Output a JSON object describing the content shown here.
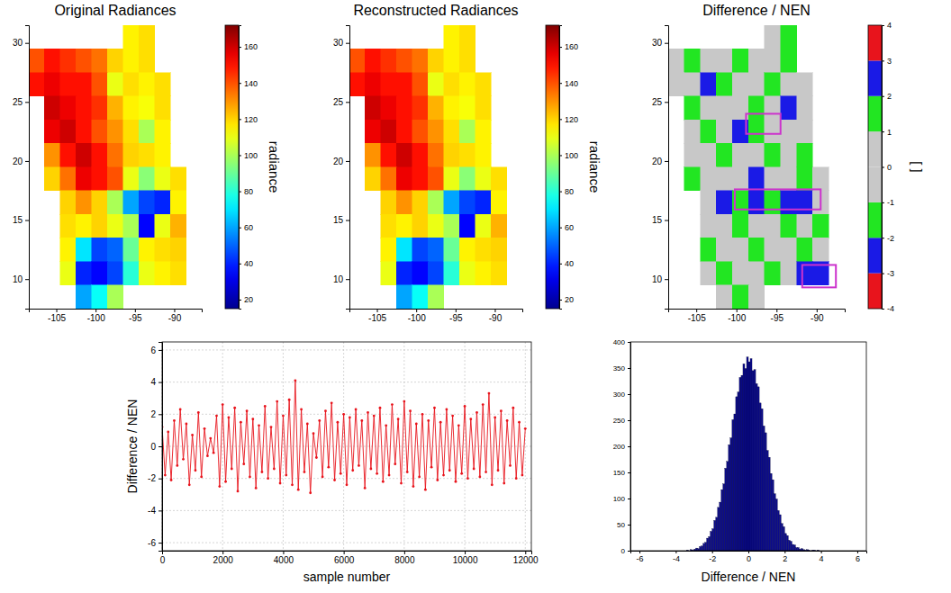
{
  "chart_data": [
    {
      "type": "heatmap",
      "title": "Original Radiances",
      "x": [
        -107.5,
        -105.5,
        -103.5,
        -101.5,
        -99.5,
        -97.5,
        -95.5,
        -93.5,
        -91.5,
        -89.5,
        -87.5
      ],
      "y": [
        30.5,
        28.5,
        26.5,
        24.5,
        22.5,
        20.5,
        18.5,
        16.5,
        14.5,
        12.5,
        10.5,
        8.5
      ],
      "values": [
        [
          null,
          null,
          null,
          null,
          null,
          null,
          115,
          118,
          null,
          null,
          null
        ],
        [
          140,
          150,
          145,
          140,
          135,
          120,
          115,
          118,
          null,
          null,
          null
        ],
        [
          150,
          155,
          150,
          150,
          140,
          110,
          118,
          115,
          118,
          null,
          null
        ],
        [
          null,
          160,
          155,
          150,
          145,
          125,
          115,
          112,
          118,
          null,
          null
        ],
        [
          null,
          155,
          160,
          150,
          140,
          130,
          118,
          100,
          115,
          null,
          null
        ],
        [
          null,
          130,
          150,
          160,
          150,
          135,
          120,
          118,
          115,
          null,
          null
        ],
        [
          null,
          120,
          135,
          155,
          150,
          140,
          110,
          95,
          110,
          118,
          null
        ],
        [
          null,
          null,
          120,
          130,
          120,
          100,
          60,
          45,
          40,
          115,
          null
        ],
        [
          null,
          null,
          118,
          115,
          120,
          110,
          100,
          35,
          110,
          125,
          null
        ],
        [
          null,
          null,
          115,
          70,
          45,
          50,
          90,
          115,
          118,
          120,
          null
        ],
        [
          null,
          null,
          110,
          40,
          35,
          45,
          80,
          110,
          115,
          118,
          null
        ],
        [
          null,
          null,
          null,
          60,
          75,
          100,
          null,
          null,
          null,
          null,
          null
        ]
      ],
      "xlim": [
        -108.5,
        -86.5
      ],
      "xticks": [
        -105,
        -100,
        -95,
        -90
      ],
      "ylim": [
        7.5,
        31.5
      ],
      "yticks": [
        10,
        15,
        20,
        25,
        30
      ],
      "colorbar": {
        "label": "radiance",
        "range": [
          15,
          172
        ],
        "ticks": [
          20,
          40,
          60,
          80,
          100,
          120,
          140,
          160
        ]
      }
    },
    {
      "type": "heatmap",
      "title": "Reconstructed Radiances",
      "x": [
        -107.5,
        -105.5,
        -103.5,
        -101.5,
        -99.5,
        -97.5,
        -95.5,
        -93.5,
        -91.5,
        -89.5,
        -87.5
      ],
      "y": [
        30.5,
        28.5,
        26.5,
        24.5,
        22.5,
        20.5,
        18.5,
        16.5,
        14.5,
        12.5,
        10.5,
        8.5
      ],
      "values": [
        [
          null,
          null,
          null,
          null,
          null,
          null,
          115,
          118,
          null,
          null,
          null
        ],
        [
          140,
          150,
          145,
          140,
          135,
          120,
          115,
          118,
          null,
          null,
          null
        ],
        [
          150,
          155,
          150,
          150,
          140,
          110,
          118,
          115,
          118,
          null,
          null
        ],
        [
          null,
          160,
          155,
          150,
          145,
          125,
          115,
          112,
          118,
          null,
          null
        ],
        [
          null,
          155,
          160,
          150,
          140,
          130,
          118,
          100,
          115,
          null,
          null
        ],
        [
          null,
          130,
          150,
          160,
          150,
          135,
          120,
          118,
          115,
          null,
          null
        ],
        [
          null,
          120,
          135,
          155,
          150,
          140,
          110,
          95,
          110,
          118,
          null
        ],
        [
          null,
          null,
          120,
          130,
          120,
          100,
          60,
          45,
          40,
          115,
          null
        ],
        [
          null,
          null,
          118,
          115,
          120,
          110,
          100,
          35,
          110,
          125,
          null
        ],
        [
          null,
          null,
          115,
          70,
          45,
          50,
          90,
          115,
          118,
          120,
          null
        ],
        [
          null,
          null,
          110,
          40,
          35,
          45,
          80,
          110,
          115,
          118,
          null
        ],
        [
          null,
          null,
          null,
          60,
          75,
          100,
          null,
          null,
          null,
          null,
          null
        ]
      ],
      "xlim": [
        -108.5,
        -86.5
      ],
      "xticks": [
        -105,
        -100,
        -95,
        -90
      ],
      "ylim": [
        7.5,
        31.5
      ],
      "yticks": [
        10,
        15,
        20,
        25,
        30
      ],
      "colorbar": {
        "label": "radiance",
        "range": [
          15,
          172
        ],
        "ticks": [
          20,
          40,
          60,
          80,
          100,
          120,
          140,
          160
        ]
      }
    },
    {
      "type": "heatmap",
      "title": "Difference / NEN",
      "x": [
        -107.5,
        -105.5,
        -103.5,
        -101.5,
        -99.5,
        -97.5,
        -95.5,
        -93.5,
        -91.5,
        -89.5,
        -87.5
      ],
      "y": [
        30.5,
        28.5,
        26.5,
        24.5,
        22.5,
        20.5,
        18.5,
        16.5,
        14.5,
        12.5,
        10.5,
        8.5
      ],
      "values": [
        [
          null,
          null,
          null,
          null,
          null,
          null,
          0.5,
          1.4,
          null,
          null,
          null
        ],
        [
          0.2,
          -1.3,
          0.4,
          0.1,
          1.5,
          -0.3,
          0.6,
          -1.2,
          null,
          null,
          null
        ],
        [
          -0.4,
          0.3,
          2.2,
          -1.1,
          0.2,
          0.5,
          -1.4,
          0.3,
          0.8,
          null,
          null
        ],
        [
          null,
          1.2,
          -0.2,
          0.4,
          -0.6,
          1.6,
          0.1,
          -2.3,
          0.4,
          null,
          null
        ],
        [
          null,
          -0.5,
          1.3,
          0.2,
          2.4,
          -1.5,
          0.3,
          0.6,
          -0.2,
          null,
          null
        ],
        [
          null,
          0.3,
          -0.7,
          1.2,
          0.1,
          -0.4,
          1.7,
          0.2,
          -1.3,
          null,
          null
        ],
        [
          null,
          -1.4,
          0.4,
          0.1,
          -0.3,
          2.1,
          0.6,
          -0.5,
          1.2,
          0.2,
          null
        ],
        [
          null,
          null,
          0.2,
          2.3,
          -1.6,
          2.5,
          1.4,
          -2.2,
          2.1,
          0.4,
          null
        ],
        [
          null,
          null,
          -0.3,
          0.6,
          1.3,
          -0.2,
          0.4,
          -1.2,
          0.3,
          1.5,
          null
        ],
        [
          null,
          null,
          1.1,
          -0.4,
          0.2,
          -1.7,
          0.6,
          0.1,
          1.3,
          -0.5,
          null
        ],
        [
          null,
          null,
          0.4,
          1.6,
          -0.3,
          0.2,
          -1.2,
          0.5,
          2.2,
          2.4,
          null
        ],
        [
          null,
          null,
          null,
          -0.6,
          1.3,
          0.2,
          null,
          null,
          null,
          null,
          null
        ]
      ],
      "xlim": [
        -108.5,
        -86.5
      ],
      "xticks": [
        -105,
        -100,
        -95,
        -90
      ],
      "ylim": [
        7.5,
        31.5
      ],
      "yticks": [
        10,
        15,
        20,
        25,
        30
      ],
      "highlight_boxes": [
        [
          -98.8,
          -94.5,
          22.3,
          24.0
        ],
        [
          -100.2,
          -89.5,
          15.9,
          17.6
        ],
        [
          -91.8,
          -87.6,
          9.3,
          11.2
        ]
      ],
      "colorbar": {
        "label": "[ ]",
        "range": [
          -4,
          4
        ],
        "ticks": [
          -4,
          -3,
          -2,
          -1,
          0,
          1,
          2,
          3,
          4
        ],
        "colors": [
          "#e8141c",
          "#1a1ae6",
          "#22e622",
          "#c8c8c8",
          "#c8c8c8",
          "#22e622",
          "#1a1ae6",
          "#e8141c"
        ]
      }
    },
    {
      "type": "line",
      "xlabel": "sample number",
      "ylabel": "Difference / NEN",
      "x": [
        0,
        100,
        200,
        300,
        400,
        500,
        600,
        700,
        800,
        900,
        1000,
        1100,
        1200,
        1300,
        1400,
        1500,
        1600,
        1700,
        1800,
        1900,
        2000,
        2100,
        2200,
        2300,
        2400,
        2500,
        2600,
        2700,
        2800,
        2900,
        3000,
        3100,
        3200,
        3300,
        3400,
        3500,
        3600,
        3700,
        3800,
        3900,
        4000,
        4100,
        4200,
        4300,
        4400,
        4500,
        4600,
        4700,
        4800,
        4900,
        5000,
        5100,
        5200,
        5300,
        5400,
        5500,
        5600,
        5700,
        5800,
        5900,
        6000,
        6100,
        6200,
        6300,
        6400,
        6500,
        6600,
        6700,
        6800,
        6900,
        7000,
        7100,
        7200,
        7300,
        7400,
        7500,
        7600,
        7700,
        7800,
        7900,
        8000,
        8100,
        8200,
        8300,
        8400,
        8500,
        8600,
        8700,
        8800,
        8900,
        9000,
        9100,
        9200,
        9300,
        9400,
        9500,
        9600,
        9700,
        9800,
        9900,
        10000,
        10100,
        10200,
        10300,
        10400,
        10500,
        10600,
        10700,
        10800,
        10900,
        11000,
        11100,
        11200,
        11300,
        11400,
        11500,
        11600,
        11700,
        11800,
        11900,
        12000
      ],
      "values": [
        1.2,
        -1.8,
        0.9,
        -2.1,
        1.6,
        -1.2,
        2.3,
        -0.8,
        1.4,
        -2.4,
        0.7,
        -1.5,
        2.1,
        -1.9,
        1.1,
        -0.6,
        0.5,
        -0.4,
        1.9,
        -2.5,
        2.6,
        -2.2,
        1.8,
        -1.4,
        2.4,
        -2.8,
        1.5,
        -1.1,
        2.2,
        -1.9,
        1.7,
        -2.6,
        1.3,
        -1.6,
        2.5,
        -2.0,
        1.2,
        -1.4,
        2.8,
        -2.3,
        1.9,
        -1.8,
        2.9,
        -2.4,
        4.1,
        -2.7,
        2.3,
        -1.6,
        1.4,
        -2.9,
        0.8,
        -0.7,
        1.6,
        -1.9,
        2.2,
        -1.3,
        2.7,
        -2.1,
        1.5,
        -1.7,
        2.0,
        -2.4,
        1.8,
        -1.5,
        2.3,
        -1.2,
        1.6,
        -2.6,
        2.1,
        -1.4,
        1.9,
        -1.7,
        2.4,
        -2.2,
        1.3,
        -1.8,
        2.6,
        -1.1,
        1.7,
        -2.3,
        2.8,
        -1.6,
        2.2,
        -2.5,
        1.4,
        -1.9,
        2.0,
        -2.7,
        1.6,
        -1.3,
        2.4,
        -2.1,
        1.5,
        -1.8,
        2.3,
        -1.5,
        1.9,
        -2.2,
        1.3,
        -1.7,
        2.5,
        -2.0,
        1.7,
        -1.4,
        2.1,
        -1.9,
        2.6,
        -1.6,
        3.3,
        -2.4,
        1.8,
        -1.5,
        2.2,
        -2.3,
        1.6,
        -1.2,
        2.4,
        -2.0,
        1.5,
        -1.8,
        1.1
      ],
      "color": "#e8141c",
      "marker": "point",
      "line_style": "solid",
      "grid": true,
      "xlim": [
        0,
        12200
      ],
      "xticks": [
        0,
        2000,
        4000,
        6000,
        8000,
        10000,
        12000
      ],
      "ylim": [
        -6.5,
        6.5
      ],
      "yticks": [
        -6,
        -4,
        -2,
        0,
        2,
        4,
        6
      ]
    },
    {
      "type": "histogram",
      "xlabel": "Difference / NEN",
      "bins": [
        -3.4,
        -3.3,
        -3.2,
        -3.1,
        -3.0,
        -2.9,
        -2.8,
        -2.7,
        -2.6,
        -2.5,
        -2.4,
        -2.3,
        -2.2,
        -2.1,
        -2.0,
        -1.9,
        -1.8,
        -1.7,
        -1.6,
        -1.5,
        -1.4,
        -1.3,
        -1.2,
        -1.1,
        -1.0,
        -0.9,
        -0.8,
        -0.7,
        -0.6,
        -0.5,
        -0.4,
        -0.3,
        -0.2,
        -0.1,
        0.0,
        0.1,
        0.2,
        0.3,
        0.4,
        0.5,
        0.6,
        0.7,
        0.8,
        0.9,
        1.0,
        1.1,
        1.2,
        1.3,
        1.4,
        1.5,
        1.6,
        1.7,
        1.8,
        1.9,
        2.0,
        2.1,
        2.2,
        2.3,
        2.4,
        2.5,
        2.6,
        2.7,
        2.8,
        2.9,
        3.0,
        3.1,
        3.2,
        3.3,
        3.4,
        3.5,
        3.6,
        3.7,
        3.8,
        3.9,
        4.0
      ],
      "counts": [
        1,
        0,
        2,
        1,
        3,
        5,
        4,
        8,
        9,
        14,
        16,
        24,
        27,
        37,
        42,
        58,
        64,
        83,
        93,
        117,
        128,
        158,
        171,
        203,
        216,
        251,
        262,
        295,
        304,
        332,
        336,
        358,
        349,
        371,
        362,
        368,
        345,
        347,
        320,
        314,
        283,
        272,
        239,
        226,
        192,
        179,
        148,
        136,
        109,
        99,
        77,
        69,
        52,
        46,
        33,
        29,
        20,
        18,
        12,
        11,
        6,
        6,
        3,
        4,
        2,
        1,
        2,
        1,
        0,
        1,
        1,
        0,
        1,
        0
      ],
      "color": "#0a0a8c",
      "xlim": [
        -6.5,
        6.5
      ],
      "xticks": [
        -6,
        -4,
        -2,
        0,
        2,
        4,
        6
      ],
      "ylim": [
        0,
        400
      ],
      "yticks": [
        0,
        50,
        100,
        150,
        200,
        250,
        300,
        350,
        400
      ]
    }
  ]
}
